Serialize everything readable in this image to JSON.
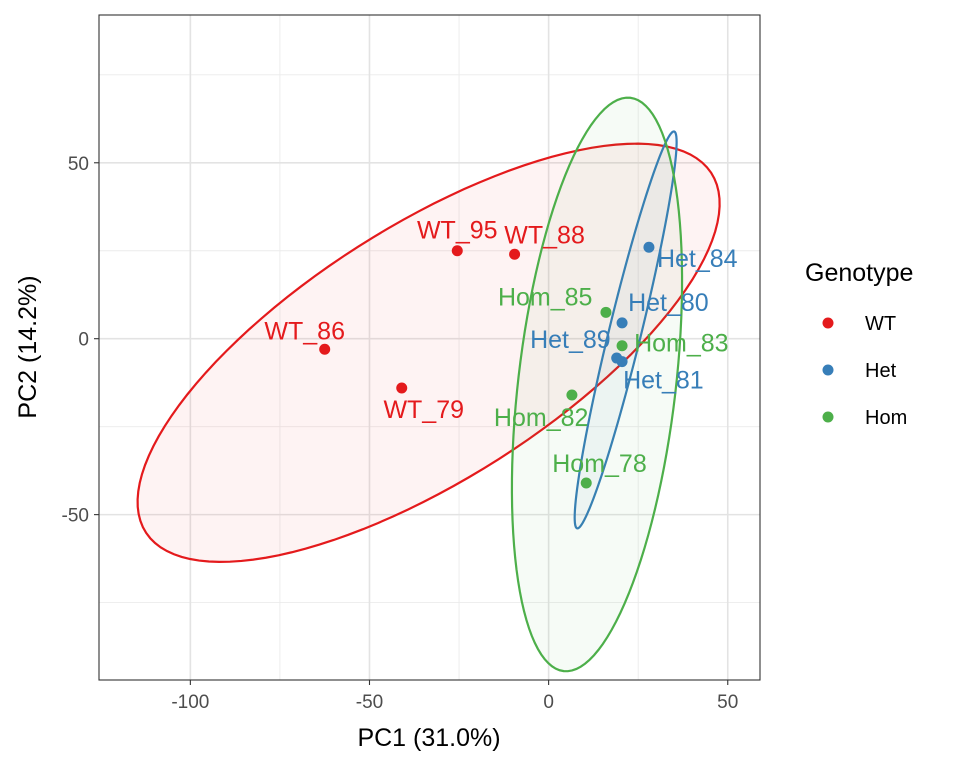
{
  "chart_data": {
    "type": "scatter",
    "xlabel": "PC1 (31.0%)",
    "ylabel": "PC2 (14.2%)",
    "xlim": [
      -125.5,
      59
    ],
    "ylim": [
      -97,
      92
    ],
    "xticks": [
      -100,
      -50,
      0,
      50
    ],
    "yticks": [
      -50,
      0,
      50
    ],
    "xtick_labels": [
      "-100",
      "-50",
      "0",
      "50"
    ],
    "ytick_labels": [
      "-50",
      "0",
      "50"
    ],
    "grid": true,
    "legend": {
      "title": "Genotype",
      "placement": "right",
      "entries": [
        "WT",
        "Het",
        "Hom"
      ]
    },
    "series": [
      {
        "name": "WT",
        "color": "#e41a1c",
        "points": [
          {
            "label": "WT_95",
            "x": -25.5,
            "y": 25
          },
          {
            "label": "WT_88",
            "x": -9.5,
            "y": 24
          },
          {
            "label": "WT_86",
            "x": -62.5,
            "y": -3
          },
          {
            "label": "WT_79",
            "x": -41,
            "y": -14
          }
        ],
        "ellipse": {
          "cx": -33.5,
          "cy": -4,
          "a": 94,
          "b": 36,
          "angle_deg": 33
        }
      },
      {
        "name": "Het",
        "color": "#377eb8",
        "points": [
          {
            "label": "Het_84",
            "x": 28,
            "y": 26
          },
          {
            "label": "Het_80",
            "x": 20.5,
            "y": 4.5
          },
          {
            "label": "Het_89",
            "x": 19,
            "y": -5.5
          },
          {
            "label": "Het_81",
            "x": 20.5,
            "y": -6.5
          }
        ],
        "ellipse": {
          "cx": 21.5,
          "cy": 2.5,
          "a": 58,
          "b": 4.5,
          "angle_deg": 76.5
        }
      },
      {
        "name": "Hom",
        "color": "#4daf4a",
        "points": [
          {
            "label": "Hom_85",
            "x": 16,
            "y": 7.5
          },
          {
            "label": "Hom_83",
            "x": 20.5,
            "y": -2
          },
          {
            "label": "Hom_82",
            "x": 6.5,
            "y": -16
          },
          {
            "label": "Hom_78",
            "x": 10.5,
            "y": -41
          }
        ],
        "ellipse": {
          "cx": 13.5,
          "cy": -13,
          "a": 82,
          "b": 22,
          "angle_deg": 83.5
        }
      }
    ]
  }
}
